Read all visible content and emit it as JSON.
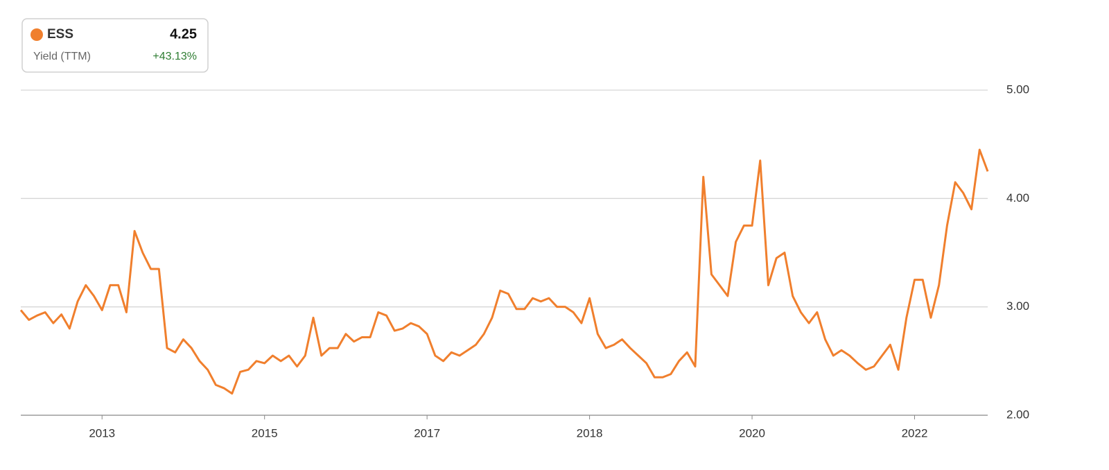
{
  "chart_data": {
    "type": "line",
    "series": [
      {
        "name": "ESS",
        "color": "#f07f2d",
        "values": [
          2.97,
          2.88,
          2.92,
          2.95,
          2.85,
          2.93,
          2.8,
          3.05,
          3.2,
          3.1,
          2.97,
          3.2,
          3.2,
          2.95,
          3.7,
          3.5,
          3.35,
          3.35,
          2.62,
          2.58,
          2.7,
          2.62,
          2.5,
          2.42,
          2.28,
          2.25,
          2.2,
          2.4,
          2.42,
          2.5,
          2.48,
          2.55,
          2.5,
          2.55,
          2.45,
          2.55,
          2.9,
          2.55,
          2.62,
          2.62,
          2.75,
          2.68,
          2.72,
          2.72,
          2.95,
          2.92,
          2.78,
          2.8,
          2.85,
          2.82,
          2.75,
          2.55,
          2.5,
          2.58,
          2.55,
          2.6,
          2.65,
          2.75,
          2.9,
          3.15,
          3.12,
          2.98,
          2.98,
          3.08,
          3.05,
          3.08,
          3.0,
          3.0,
          2.95,
          2.85,
          3.08,
          2.75,
          2.62,
          2.65,
          2.7,
          2.62,
          2.55,
          2.48,
          2.35,
          2.35,
          2.38,
          2.5,
          2.58,
          2.45,
          4.2,
          3.3,
          3.2,
          3.1,
          3.6,
          3.75,
          3.75,
          4.35,
          3.2,
          3.45,
          3.5,
          3.1,
          2.95,
          2.85,
          2.95,
          2.7,
          2.55,
          2.6,
          2.55,
          2.48,
          2.42,
          2.45,
          2.55,
          2.65,
          2.42,
          2.9,
          3.25,
          3.25,
          2.9,
          3.2,
          3.75,
          4.15,
          4.05,
          3.9,
          4.45,
          4.25
        ]
      }
    ],
    "categories": [
      null,
      null,
      null,
      null,
      null,
      null,
      null,
      null,
      null,
      null,
      "2013",
      null,
      null,
      null,
      null,
      null,
      null,
      null,
      null,
      null,
      null,
      null,
      null,
      null,
      null,
      null,
      null,
      null,
      null,
      null,
      "2015",
      null,
      null,
      null,
      null,
      null,
      null,
      null,
      null,
      null,
      null,
      null,
      null,
      null,
      null,
      null,
      null,
      null,
      null,
      null,
      "2017",
      null,
      null,
      null,
      null,
      null,
      null,
      null,
      null,
      null,
      null,
      null,
      null,
      null,
      null,
      null,
      null,
      null,
      null,
      null,
      "2018",
      null,
      null,
      null,
      null,
      null,
      null,
      null,
      null,
      null,
      null,
      null,
      null,
      null,
      null,
      null,
      null,
      null,
      null,
      null,
      "2020",
      null,
      null,
      null,
      null,
      null,
      null,
      null,
      null,
      null,
      null,
      null,
      null,
      null,
      null,
      null,
      null,
      null,
      null,
      null,
      "2022",
      null,
      null,
      null,
      null,
      null,
      null,
      null,
      null,
      null
    ],
    "subtitle": "Yield (TTM)",
    "last_value": 4.25,
    "change_label": "+43.13%",
    "ylim": [
      2,
      5
    ],
    "yticks": [
      {
        "value": 2,
        "label": "2.00"
      },
      {
        "value": 3,
        "label": "3.00"
      },
      {
        "value": 4,
        "label": "4.00"
      },
      {
        "value": 5,
        "label": "5.00"
      }
    ],
    "grid": true
  }
}
